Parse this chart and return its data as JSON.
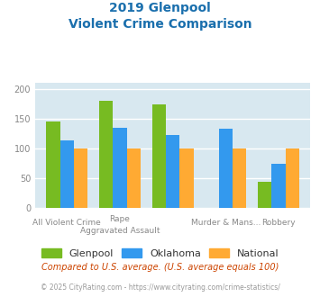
{
  "title_line1": "2019 Glenpool",
  "title_line2": "Violent Crime Comparison",
  "title_color": "#1a6fad",
  "categories": [
    "All Violent Crime",
    "Rape",
    "Aggravated Assault",
    "Murder & Mans...",
    "Robbery"
  ],
  "glenpool": [
    145,
    180,
    174,
    0,
    44
  ],
  "oklahoma": [
    114,
    135,
    122,
    133,
    74
  ],
  "national": [
    100,
    100,
    100,
    100,
    100
  ],
  "bar_colors": {
    "glenpool": "#77bb22",
    "oklahoma": "#3399ee",
    "national": "#ffaa33"
  },
  "ylim": [
    0,
    210
  ],
  "yticks": [
    0,
    50,
    100,
    150,
    200
  ],
  "background_color": "#d8e8f0",
  "grid_color": "#ffffff",
  "legend_labels": [
    "Glenpool",
    "Oklahoma",
    "National"
  ],
  "footnote1": "Compared to U.S. average. (U.S. average equals 100)",
  "footnote2": "© 2025 CityRating.com - https://www.cityrating.com/crime-statistics/",
  "footnote1_color": "#cc4400",
  "footnote2_color": "#999999",
  "tick_label_color": "#888888"
}
